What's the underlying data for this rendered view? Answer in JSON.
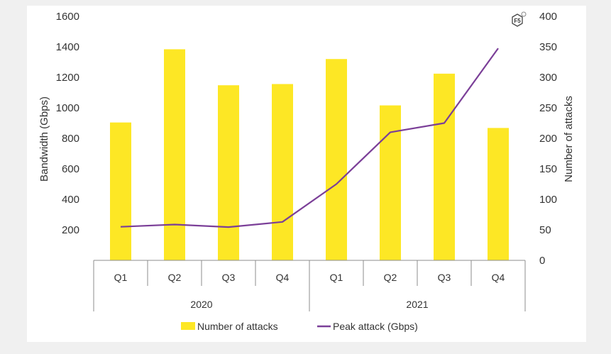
{
  "colors": {
    "bar": "#fde725",
    "line": "#7b3f98",
    "axis": "#8c8c8c",
    "text": "#333333"
  },
  "logo": {
    "label": "F5"
  },
  "chart_data": {
    "type": "bar",
    "categories": [
      "Q1",
      "Q2",
      "Q3",
      "Q4",
      "Q1",
      "Q2",
      "Q3",
      "Q4"
    ],
    "groups": [
      {
        "label": "2020",
        "span": 4
      },
      {
        "label": "2021",
        "span": 4
      }
    ],
    "title": "",
    "ylabel": "Bandwidth (Gbps)",
    "y2label": "Number of attacks",
    "ylim": [
      0,
      1600
    ],
    "y2lim": [
      0,
      400
    ],
    "yticks": [
      200,
      400,
      600,
      800,
      1000,
      1200,
      1400,
      1600
    ],
    "y2ticks": [
      0,
      50,
      100,
      150,
      200,
      250,
      300,
      350,
      400
    ],
    "grid": false,
    "legend_position": "bottom",
    "series": [
      {
        "name": "Number of attacks",
        "type": "bar",
        "axis": "right",
        "values": [
          226,
          346,
          287,
          289,
          330,
          254,
          306,
          217
        ]
      },
      {
        "name": "Peak attack (Gbps)",
        "type": "line",
        "axis": "left",
        "values": [
          220,
          235,
          218,
          252,
          500,
          840,
          900,
          1390
        ]
      }
    ]
  }
}
